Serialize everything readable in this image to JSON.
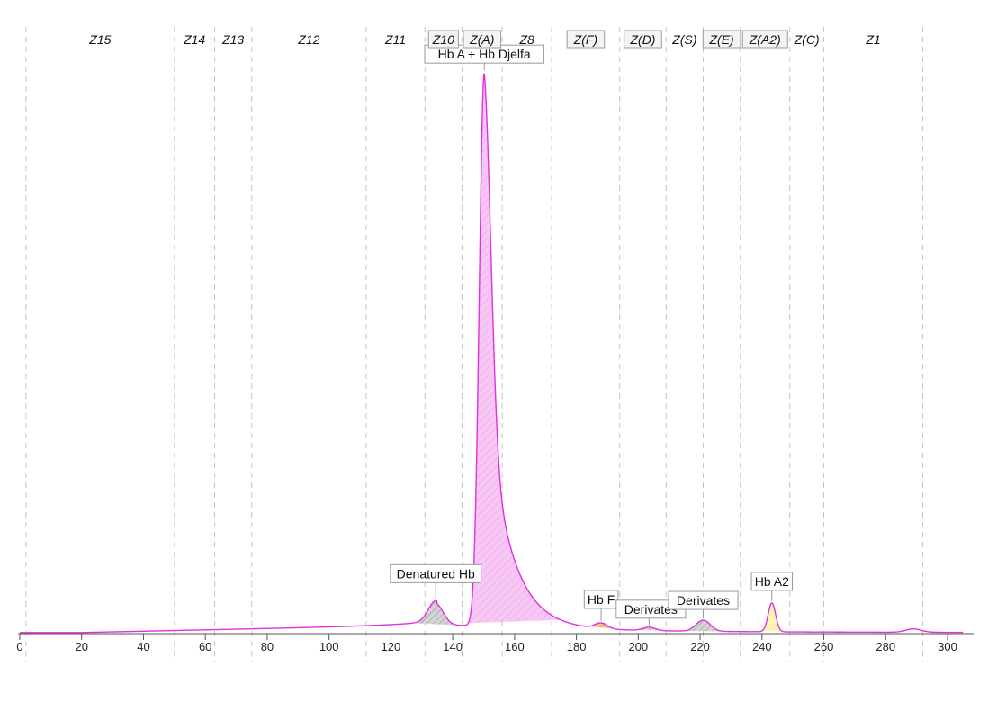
{
  "chart_data": {
    "type": "line",
    "title": "",
    "xlabel": "",
    "ylabel": "",
    "xlim": [
      0,
      305
    ],
    "ylim": [
      0,
      100
    ],
    "x_ticks": [
      0,
      20,
      40,
      60,
      80,
      100,
      120,
      140,
      160,
      180,
      200,
      220,
      240,
      260,
      280,
      300
    ],
    "grid": false,
    "colors": {
      "trace": "#e030e0",
      "main_fill": "#f7c8f4",
      "grey_fill": "#c8c8c8",
      "hbf_fill": "#f2b27a",
      "hba2_fill": "#fbf5b4",
      "zone_line": "#c4c4c4"
    },
    "zones": [
      {
        "label": "Z15",
        "x_start": 2,
        "x_end": 50,
        "boxed": false
      },
      {
        "label": "Z14",
        "x_start": 50,
        "x_end": 63,
        "boxed": false
      },
      {
        "label": "Z13",
        "x_start": 63,
        "x_end": 75,
        "boxed": false
      },
      {
        "label": "Z12",
        "x_start": 75,
        "x_end": 112,
        "boxed": false
      },
      {
        "label": "Z11",
        "x_start": 112,
        "x_end": 131,
        "boxed": false
      },
      {
        "label": "Z10",
        "x_start": 131,
        "x_end": 143,
        "boxed": true
      },
      {
        "label": "Z(A)",
        "x_start": 143,
        "x_end": 156,
        "boxed": true
      },
      {
        "label": "Z8",
        "x_start": 156,
        "x_end": 172,
        "boxed": false
      },
      {
        "label": "Z(F)",
        "x_start": 172,
        "x_end": 194,
        "boxed": true
      },
      {
        "label": "Z(D)",
        "x_start": 194,
        "x_end": 209,
        "boxed": true
      },
      {
        "label": "Z(S)",
        "x_start": 209,
        "x_end": 221,
        "boxed": false
      },
      {
        "label": "Z(E)",
        "x_start": 221,
        "x_end": 233,
        "boxed": true
      },
      {
        "label": "Z(A2)",
        "x_start": 233,
        "x_end": 249,
        "boxed": true
      },
      {
        "label": "Z(C)",
        "x_start": 249,
        "x_end": 260,
        "boxed": false
      },
      {
        "label": "Z1",
        "x_start": 260,
        "x_end": 292,
        "boxed": false
      }
    ],
    "peaks": [
      {
        "label": "Hb A + Hb Djelfa",
        "x": 150.2,
        "height": 100,
        "sigma_left": 1.6,
        "tau_right": 7.5,
        "fill": "main",
        "x_from": 145,
        "x_to": 175
      },
      {
        "label": "Denatured Hb",
        "x": 134.5,
        "height": 3.7,
        "sigma": 2.4,
        "fill": "grey",
        "x_from": 127,
        "x_to": 142
      },
      {
        "label": "Hb F",
        "x": 188,
        "height": 1.0,
        "sigma": 2.0,
        "fill": "hbf",
        "x_from": 184,
        "x_to": 193
      },
      {
        "label": "Derivates",
        "x": 203.5,
        "height": 0.6,
        "sigma": 2.0,
        "fill": "grey",
        "x_from": 199,
        "x_to": 208
      },
      {
        "label": "Derivates",
        "x": 221,
        "height": 2.0,
        "sigma": 2.3,
        "fill": "grey",
        "x_from": 214,
        "x_to": 228
      },
      {
        "label": "Hb A2",
        "x": 243.2,
        "height": 5.2,
        "sigma": 1.2,
        "fill": "a2",
        "x_from": 240,
        "x_to": 247
      },
      {
        "label": "",
        "x": 289,
        "height": 0.6,
        "sigma": 2.5,
        "fill": "none",
        "x_from": 0,
        "x_to": 0
      }
    ]
  }
}
